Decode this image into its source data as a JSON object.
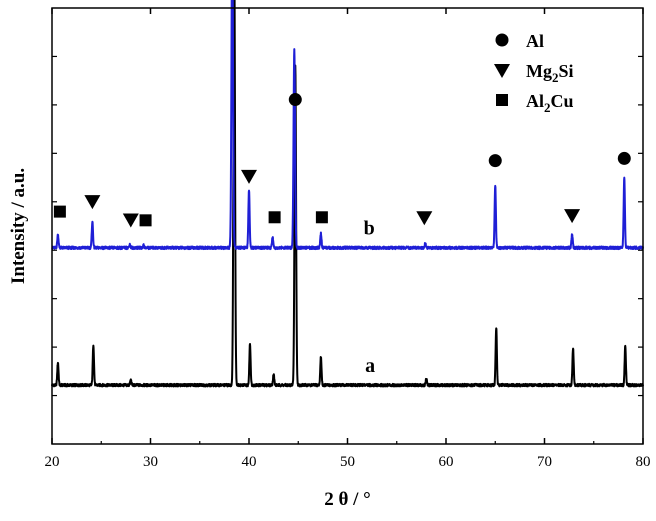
{
  "chart_data": {
    "type": "line",
    "xlabel": "2 θ / °",
    "ylabel": "Intensity / a.u.",
    "xlim": [
      20,
      80
    ],
    "xticks": [
      20,
      30,
      40,
      50,
      60,
      70,
      80
    ],
    "ylim": [
      0,
      1
    ],
    "show_y_tick_labels": false,
    "grid": false,
    "legend_position": "top-right",
    "legend": [
      {
        "marker": "circle",
        "label_main": "Al",
        "label_sub": ""
      },
      {
        "marker": "triangle-down",
        "label_main": "Mg",
        "label_sub": "2",
        "label_tail": "Si"
      },
      {
        "marker": "square",
        "label_main": "Al",
        "label_sub": "2",
        "label_tail": "Cu"
      }
    ],
    "series": [
      {
        "name": "a",
        "color": "#000000",
        "baseline": 0.135,
        "peaks": [
          {
            "x": 20.6,
            "h": 0.052
          },
          {
            "x": 24.2,
            "h": 0.093
          },
          {
            "x": 28.0,
            "h": 0.012
          },
          {
            "x": 38.5,
            "h": 1.0
          },
          {
            "x": 40.1,
            "h": 0.095
          },
          {
            "x": 42.5,
            "h": 0.025
          },
          {
            "x": 44.7,
            "h": 0.735
          },
          {
            "x": 47.3,
            "h": 0.065
          },
          {
            "x": 58.0,
            "h": 0.014
          },
          {
            "x": 65.1,
            "h": 0.133
          },
          {
            "x": 72.9,
            "h": 0.085
          },
          {
            "x": 78.2,
            "h": 0.09
          }
        ]
      },
      {
        "name": "b",
        "color": "#1f1fd6",
        "baseline": 0.45,
        "peaks": [
          {
            "x": 20.6,
            "h": 0.03
          },
          {
            "x": 24.1,
            "h": 0.06
          },
          {
            "x": 27.9,
            "h": 0.008
          },
          {
            "x": 29.3,
            "h": 0.006
          },
          {
            "x": 38.3,
            "h": 0.74
          },
          {
            "x": 40.0,
            "h": 0.133
          },
          {
            "x": 42.4,
            "h": 0.025
          },
          {
            "x": 44.6,
            "h": 0.455
          },
          {
            "x": 47.3,
            "h": 0.033
          },
          {
            "x": 57.9,
            "h": 0.01
          },
          {
            "x": 65.0,
            "h": 0.143
          },
          {
            "x": 72.8,
            "h": 0.03
          },
          {
            "x": 78.1,
            "h": 0.16
          }
        ]
      }
    ],
    "phase_markers": [
      {
        "marker": "circle",
        "x": 38.5,
        "y": 1.045
      },
      {
        "marker": "circle",
        "x": 44.7,
        "y": 0.79
      },
      {
        "marker": "circle",
        "x": 65.0,
        "y": 0.65
      },
      {
        "marker": "circle",
        "x": 78.1,
        "y": 0.655
      },
      {
        "marker": "triangle-down",
        "x": 24.1,
        "y": 0.557
      },
      {
        "marker": "triangle-down",
        "x": 28.0,
        "y": 0.515
      },
      {
        "marker": "triangle-down",
        "x": 40.0,
        "y": 0.615
      },
      {
        "marker": "triangle-down",
        "x": 57.8,
        "y": 0.52
      },
      {
        "marker": "triangle-down",
        "x": 72.8,
        "y": 0.525
      },
      {
        "marker": "square",
        "x": 20.8,
        "y": 0.533
      },
      {
        "marker": "square",
        "x": 29.5,
        "y": 0.513
      },
      {
        "marker": "square",
        "x": 42.6,
        "y": 0.52
      },
      {
        "marker": "square",
        "x": 47.4,
        "y": 0.52
      }
    ]
  }
}
